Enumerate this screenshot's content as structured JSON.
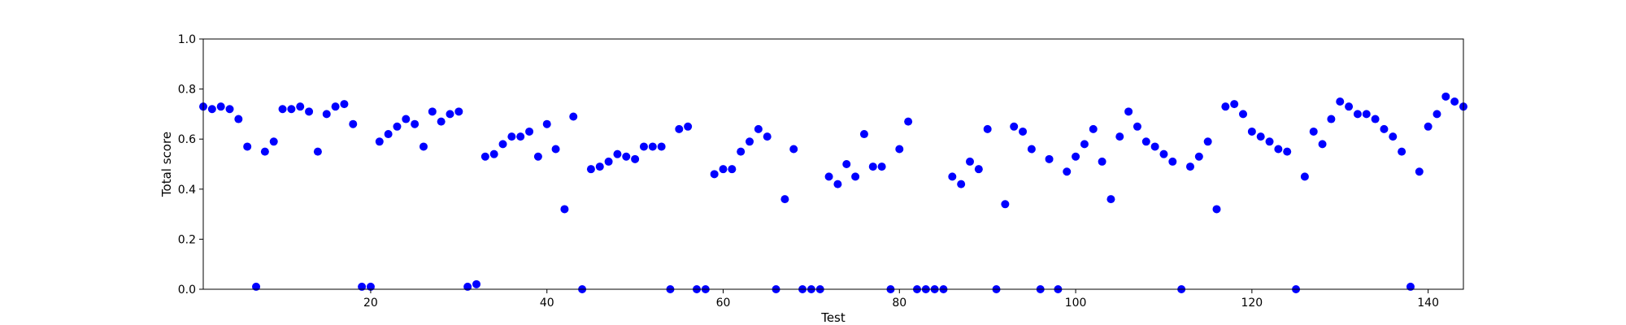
{
  "chart_data": {
    "type": "scatter",
    "xlabel": "Test",
    "ylabel": "Total score",
    "xlim": [
      1,
      144
    ],
    "ylim": [
      0.0,
      1.0
    ],
    "xticks": [
      20,
      40,
      60,
      80,
      100,
      120,
      140
    ],
    "yticks": [
      "0.0",
      "0.2",
      "0.4",
      "0.6",
      "0.8",
      "1.0"
    ],
    "grid": false,
    "marker_color": "#0000ff",
    "x": [
      1,
      2,
      3,
      4,
      5,
      6,
      7,
      8,
      9,
      10,
      11,
      12,
      13,
      14,
      15,
      16,
      17,
      18,
      19,
      20,
      21,
      22,
      23,
      24,
      25,
      26,
      27,
      28,
      29,
      30,
      31,
      32,
      33,
      34,
      35,
      36,
      37,
      38,
      39,
      40,
      41,
      42,
      43,
      44,
      45,
      46,
      47,
      48,
      49,
      50,
      51,
      52,
      53,
      54,
      55,
      56,
      57,
      58,
      59,
      60,
      61,
      62,
      63,
      64,
      65,
      66,
      67,
      68,
      69,
      70,
      71,
      72,
      73,
      74,
      75,
      76,
      77,
      78,
      79,
      80,
      81,
      82,
      83,
      84,
      85,
      86,
      87,
      88,
      89,
      90,
      91,
      92,
      93,
      94,
      95,
      96,
      97,
      98,
      99,
      100,
      101,
      102,
      103,
      104,
      105,
      106,
      107,
      108,
      109,
      110,
      111,
      112,
      113,
      114,
      115,
      116,
      117,
      118,
      119,
      120,
      121,
      122,
      123,
      124,
      125,
      126,
      127,
      128,
      129,
      130,
      131,
      132,
      133,
      134,
      135,
      136,
      137,
      138,
      139,
      140,
      141,
      142,
      143,
      144
    ],
    "y": [
      0.73,
      0.72,
      0.73,
      0.72,
      0.68,
      0.57,
      0.01,
      0.55,
      0.59,
      0.72,
      0.72,
      0.73,
      0.71,
      0.55,
      0.7,
      0.73,
      0.74,
      0.66,
      0.01,
      0.01,
      0.59,
      0.62,
      0.65,
      0.68,
      0.66,
      0.57,
      0.71,
      0.67,
      0.7,
      0.71,
      0.01,
      0.02,
      0.53,
      0.54,
      0.58,
      0.61,
      0.61,
      0.63,
      0.53,
      0.66,
      0.56,
      0.32,
      0.69,
      0.0,
      0.48,
      0.49,
      0.51,
      0.54,
      0.53,
      0.52,
      0.57,
      0.57,
      0.57,
      0.0,
      0.64,
      0.65,
      0.0,
      0.0,
      0.46,
      0.48,
      0.48,
      0.55,
      0.59,
      0.64,
      0.61,
      0.0,
      0.36,
      0.56,
      0.0,
      0.0,
      0.0,
      0.45,
      0.42,
      0.5,
      0.45,
      0.62,
      0.49,
      0.49,
      0.0,
      0.56,
      0.67,
      0.0,
      0.0,
      0.0,
      0.0,
      0.45,
      0.42,
      0.51,
      0.48,
      0.64,
      0.0,
      0.34,
      0.65,
      0.63,
      0.56,
      0.0,
      0.52,
      0.0,
      0.47,
      0.53,
      0.58,
      0.64,
      0.51,
      0.36,
      0.61,
      0.71,
      0.65,
      0.59,
      0.57,
      0.54,
      0.51,
      0.0,
      0.49,
      0.53,
      0.59,
      0.32,
      0.73,
      0.74,
      0.7,
      0.63,
      0.61,
      0.59,
      0.56,
      0.55,
      0.0,
      0.45,
      0.63,
      0.58,
      0.68,
      0.75,
      0.73,
      0.7,
      0.7,
      0.68,
      0.64,
      0.61,
      0.55,
      0.01,
      0.47,
      0.65,
      0.7,
      0.77,
      0.75,
      0.73
    ]
  }
}
